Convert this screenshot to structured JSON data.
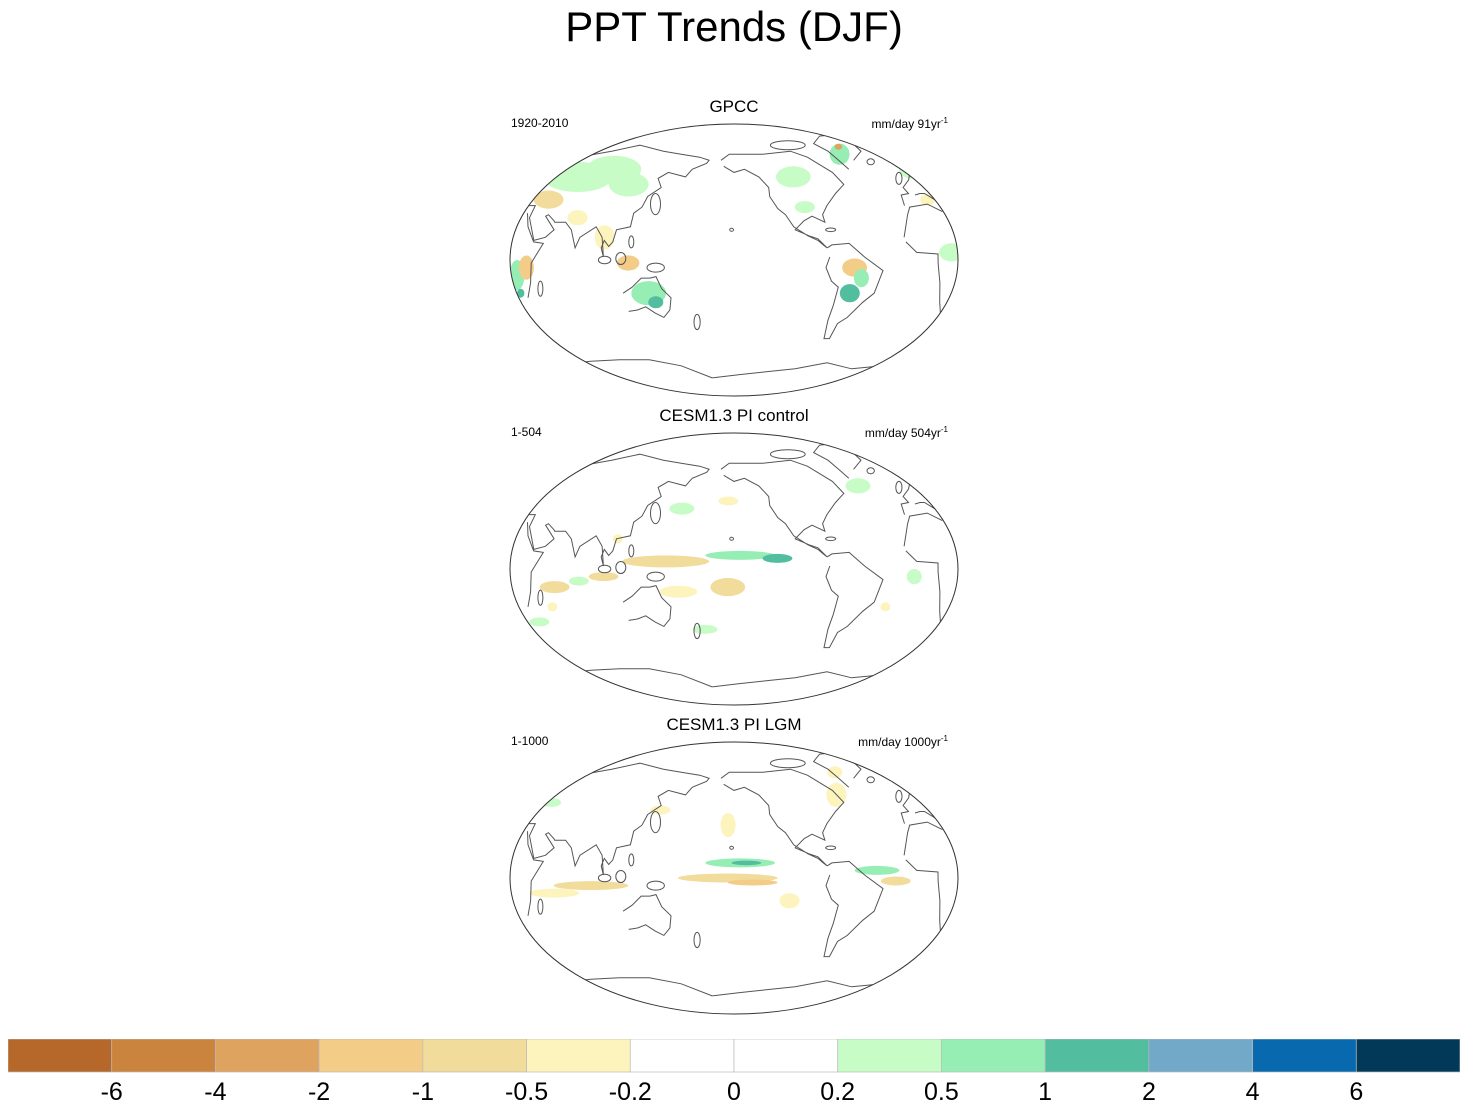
{
  "title": "PPT Trends (DJF)",
  "panels": [
    {
      "title": "GPCC",
      "period": "1920-2010",
      "units": "mm/day 91yr",
      "units_exp": "-1",
      "patches": [
        {
          "lon": 60,
          "lat": 55,
          "rx": 28,
          "ry": 10,
          "v": 0.3
        },
        {
          "lon": 90,
          "lat": 60,
          "rx": 22,
          "ry": 9,
          "v": 0.4
        },
        {
          "lon": 110,
          "lat": 50,
          "rx": 16,
          "ry": 8,
          "v": 0.3
        },
        {
          "lon": 45,
          "lat": 40,
          "rx": 12,
          "ry": 6,
          "v": -0.6
        },
        {
          "lon": 75,
          "lat": 28,
          "rx": 8,
          "ry": 5,
          "v": -0.5
        },
        {
          "lon": 100,
          "lat": 15,
          "rx": 8,
          "ry": 8,
          "v": -0.4
        },
        {
          "lon": 120,
          "lat": -2,
          "rx": 9,
          "ry": 5,
          "v": -1.2
        },
        {
          "lon": 135,
          "lat": -22,
          "rx": 14,
          "ry": 8,
          "v": 0.6
        },
        {
          "lon": 140,
          "lat": -28,
          "rx": 6,
          "ry": 4,
          "v": 1.3
        },
        {
          "lon": 30,
          "lat": -10,
          "rx": 6,
          "ry": 10,
          "v": 0.5
        },
        {
          "lon": 30,
          "lat": -22,
          "rx": 3,
          "ry": 3,
          "v": 1.4
        },
        {
          "lon": -100,
          "lat": 55,
          "rx": 14,
          "ry": 7,
          "v": 0.3
        },
        {
          "lon": -95,
          "lat": 35,
          "rx": 8,
          "ry": 4,
          "v": 0.4
        },
        {
          "lon": -58,
          "lat": -5,
          "rx": 10,
          "ry": 6,
          "v": -1.2
        },
        {
          "lon": -52,
          "lat": -12,
          "rx": 6,
          "ry": 6,
          "v": 0.7
        },
        {
          "lon": -60,
          "lat": -22,
          "rx": 8,
          "ry": 6,
          "v": 1.3
        },
        {
          "lon": -45,
          "lat": 70,
          "rx": 8,
          "ry": 7,
          "v": 0.6
        },
        {
          "lon": -40,
          "lat": 75,
          "rx": 3,
          "ry": 2,
          "v": -2.5
        },
        {
          "lon": 15,
          "lat": 60,
          "rx": 10,
          "ry": 6,
          "v": 0.4
        },
        {
          "lon": 20,
          "lat": 5,
          "rx": 10,
          "ry": 6,
          "v": 0.4
        },
        {
          "lon": 38,
          "lat": -5,
          "rx": 6,
          "ry": 8,
          "v": -1.1
        },
        {
          "lon": 12,
          "lat": 40,
          "rx": 6,
          "ry": 4,
          "v": -0.4
        }
      ]
    },
    {
      "title": "CESM1.3 PI control",
      "period": "1-504",
      "units": "mm/day 504yr",
      "units_exp": "-1",
      "patches": [
        {
          "lon": 150,
          "lat": 5,
          "rx": 35,
          "ry": 4,
          "v": -0.6
        },
        {
          "lon": -150,
          "lat": 9,
          "rx": 28,
          "ry": 3,
          "v": 0.6
        },
        {
          "lon": -120,
          "lat": 7,
          "rx": 12,
          "ry": 3,
          "v": 1.2
        },
        {
          "lon": 100,
          "lat": -5,
          "rx": 12,
          "ry": 3,
          "v": -0.6
        },
        {
          "lon": 160,
          "lat": -15,
          "rx": 15,
          "ry": 4,
          "v": -0.5
        },
        {
          "lon": -160,
          "lat": -12,
          "rx": 14,
          "ry": 6,
          "v": -0.6
        },
        {
          "lon": 60,
          "lat": -12,
          "rx": 12,
          "ry": 4,
          "v": -0.6
        },
        {
          "lon": 80,
          "lat": -8,
          "rx": 8,
          "ry": 3,
          "v": 0.4
        },
        {
          "lon": 160,
          "lat": 40,
          "rx": 10,
          "ry": 4,
          "v": 0.4
        },
        {
          "lon": -160,
          "lat": 45,
          "rx": 8,
          "ry": 3,
          "v": -0.3
        },
        {
          "lon": -40,
          "lat": 55,
          "rx": 10,
          "ry": 5,
          "v": 0.4
        },
        {
          "lon": -10,
          "lat": -5,
          "rx": 6,
          "ry": 5,
          "v": 0.4
        },
        {
          "lon": -30,
          "lat": -25,
          "rx": 4,
          "ry": 3,
          "v": -0.4
        },
        {
          "lon": 40,
          "lat": -35,
          "rx": 8,
          "ry": 3,
          "v": 0.4
        },
        {
          "lon": 180,
          "lat": -40,
          "rx": 10,
          "ry": 3,
          "v": 0.3
        },
        {
          "lon": 110,
          "lat": 20,
          "rx": 4,
          "ry": 3,
          "v": -0.5
        },
        {
          "lon": 55,
          "lat": -25,
          "rx": 4,
          "ry": 3,
          "v": -0.4
        }
      ]
    },
    {
      "title": "CESM1.3 PI LGM",
      "period": "1-1000",
      "units": "mm/day 1000yr",
      "units_exp": "-1",
      "patches": [
        {
          "lon": -150,
          "lat": 10,
          "rx": 28,
          "ry": 3,
          "v": 0.7
        },
        {
          "lon": -145,
          "lat": 10,
          "rx": 12,
          "ry": 1.5,
          "v": 1.5
        },
        {
          "lon": -160,
          "lat": 0,
          "rx": 40,
          "ry": 3,
          "v": -0.6
        },
        {
          "lon": -140,
          "lat": -3,
          "rx": 20,
          "ry": 2,
          "v": -1.2
        },
        {
          "lon": -160,
          "lat": 35,
          "rx": 6,
          "ry": 8,
          "v": -0.5
        },
        {
          "lon": 90,
          "lat": -5,
          "rx": 30,
          "ry": 3,
          "v": -0.6
        },
        {
          "lon": 60,
          "lat": -10,
          "rx": 20,
          "ry": 3,
          "v": -0.4
        },
        {
          "lon": -40,
          "lat": 5,
          "rx": 18,
          "ry": 3,
          "v": 0.5
        },
        {
          "lon": -25,
          "lat": -2,
          "rx": 12,
          "ry": 3,
          "v": -0.6
        },
        {
          "lon": -60,
          "lat": 55,
          "rx": 8,
          "ry": 8,
          "v": -0.5
        },
        {
          "lon": -50,
          "lat": 70,
          "rx": 6,
          "ry": 4,
          "v": -0.5
        },
        {
          "lon": 140,
          "lat": 45,
          "rx": 8,
          "ry": 3,
          "v": -0.3
        },
        {
          "lon": -110,
          "lat": -15,
          "rx": 8,
          "ry": 5,
          "v": -0.4
        },
        {
          "lon": 40,
          "lat": 50,
          "rx": 8,
          "ry": 3,
          "v": 0.3
        }
      ]
    }
  ],
  "colorbar": {
    "colors": [
      "#b5682a",
      "#cb843e",
      "#dea35e",
      "#f3cc87",
      "#f2dc9b",
      "#fdf3bd",
      "#ffffff",
      "#ffffff",
      "#c7fcc7",
      "#96eeb5",
      "#52bd9f",
      "#72a8c8",
      "#0869ae",
      "#023858"
    ],
    "labels": [
      "-6",
      "-4",
      "-2",
      "-1",
      "-0.5",
      "-0.2",
      "0",
      "0.2",
      "0.5",
      "1",
      "2",
      "4",
      "6"
    ],
    "thresholds": [
      -6,
      -4,
      -2,
      -1,
      -0.5,
      -0.2,
      0,
      0.2,
      0.5,
      1,
      2,
      4,
      6
    ]
  }
}
